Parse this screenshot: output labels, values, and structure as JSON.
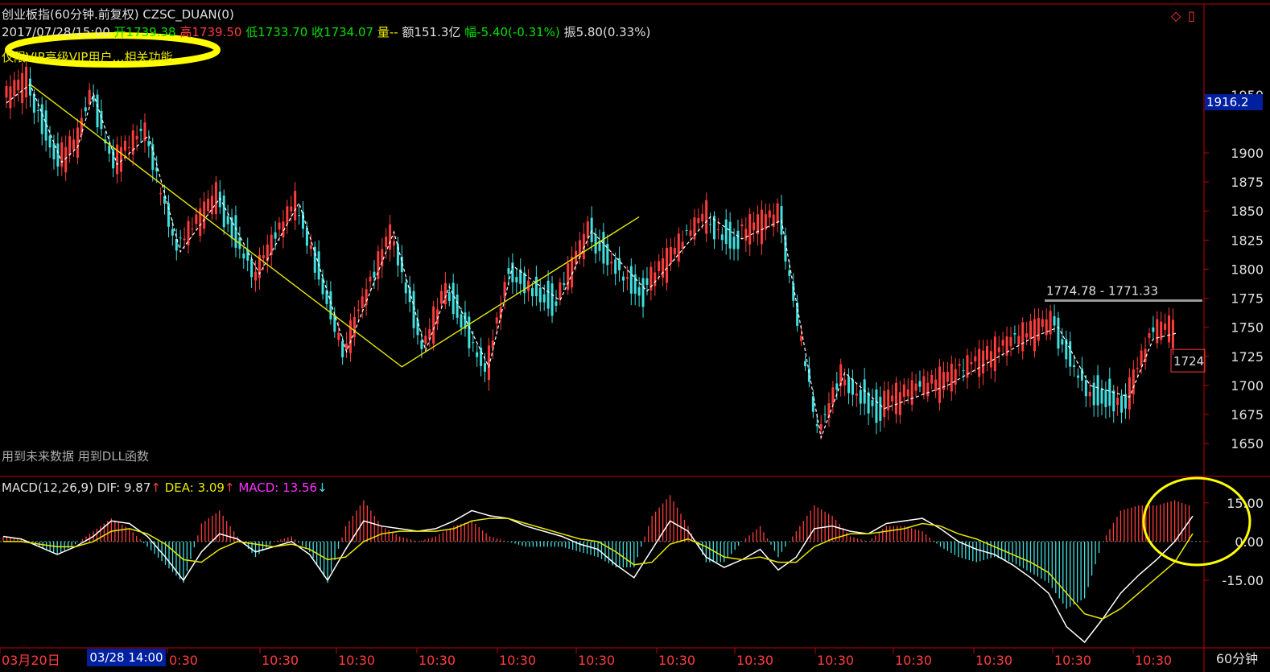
{
  "header": {
    "title": "创业板指(60分钟.前复权) CZSC_DUAN(0)",
    "date": "2017/07/28/15:00",
    "open_label": "开",
    "open": "1739.38",
    "high_label": "高",
    "high": "1739.50",
    "low_label": "低",
    "low": "1733.70",
    "close_label": "收",
    "close": "1734.07",
    "volume": "量--",
    "amount": "额151.3亿",
    "change": "幅-5.40(-0.31%)",
    "amplitude": "振5.80(0.33%)",
    "vip_note": "仅限VIP高级VIP用户…相关功能",
    "warning": "用到未来数据 用到DLL函数"
  },
  "price_box": "1916.2",
  "zone_label": "1774.78 - 1771.33",
  "right_label": "1724",
  "timeframe": "60分钟",
  "date_left": "03月20日",
  "date_cursor": "03/28 14:00",
  "toolbar": {
    "diamond": "◇",
    "window": "▯"
  },
  "macd": {
    "label": "MACD(12,26,9)",
    "dif": "DIF: 9.87",
    "dea": "DEA: 3.09",
    "macd": "MACD: 13.56",
    "arrow_up": "↑",
    "arrow_down": "↓"
  },
  "colors": {
    "up": "#ff3c3c",
    "down": "#40e0e0",
    "axis": "#c00000",
    "zigzag": "#ffffff",
    "trend": "#e8e800"
  },
  "chart_data": [
    {
      "type": "line",
      "title": "创业板指(60分钟.前复权)",
      "y_ticks": [
        1650,
        1675,
        1700,
        1725,
        1750,
        1775,
        1800,
        1825,
        1850,
        1875,
        1900,
        1950
      ],
      "ylim": [
        1630,
        1990
      ],
      "x_ticks": [
        "03月20日",
        "0:30",
        "10:30",
        "10:30",
        "10:30",
        "10:30",
        "10:30",
        "10:30",
        "10:30",
        "10:30",
        "10:30",
        "10:30",
        "10:30",
        "10:30",
        "10:30"
      ],
      "series": [
        {
          "x": [
            0,
            3,
            7,
            9,
            11,
            14,
            18,
            22,
            27,
            32,
            37,
            43,
            49,
            53,
            56,
            61,
            64,
            70,
            74,
            81,
            89,
            93,
            98,
            103,
            106,
            111,
            119,
            130,
            133,
            137,
            142,
            145,
            148
          ],
          "y": [
            1943,
            1959,
            1892,
            1905,
            1951,
            1890,
            1915,
            1815,
            1861,
            1796,
            1857,
            1729,
            1832,
            1730,
            1785,
            1716,
            1803,
            1773,
            1833,
            1781,
            1845,
            1826,
            1842,
            1655,
            1711,
            1680,
            1700,
            1742,
            1750,
            1700,
            1690,
            1740,
            1745
          ]
        },
        {
          "x": [
            3,
            50,
            80,
            120
          ],
          "y": [
            1959,
            1716,
            1845,
            1845
          ]
        }
      ]
    },
    {
      "type": "bar",
      "title": "MACD(12,26,9)",
      "y_ticks": [
        15,
        0,
        -15
      ],
      "ylim": [
        -39,
        19
      ],
      "series": [
        {
          "name": "DIF",
          "values": [
            2,
            1,
            -2,
            -5,
            -2,
            2,
            8,
            7,
            2,
            -6,
            -15,
            -4,
            3,
            1,
            -4,
            -2,
            0,
            -5,
            -15,
            -3,
            8,
            6,
            5,
            4,
            5,
            8,
            12,
            10,
            9,
            6,
            4,
            2,
            -1,
            -3,
            -9,
            -14,
            -3,
            8,
            4,
            -6,
            -10,
            -7,
            -3,
            -11,
            -6,
            5,
            6,
            4,
            3,
            7,
            8,
            9,
            5,
            0,
            -3,
            -5,
            -9,
            -14,
            -20,
            -33,
            -39,
            -30,
            -20,
            -13,
            -7,
            0,
            9.87
          ]
        },
        {
          "name": "DEA",
          "values": [
            0,
            0,
            -1,
            -2,
            -2,
            0,
            4,
            5,
            3,
            -1,
            -7,
            -8,
            -3,
            0,
            -1,
            -2,
            -1,
            -3,
            -7,
            -6,
            0,
            3,
            4,
            4,
            4,
            5,
            8,
            9,
            9,
            7,
            5,
            3,
            1,
            0,
            -4,
            -9,
            -8,
            -1,
            1,
            -2,
            -6,
            -7,
            -6,
            -8,
            -8,
            -2,
            1,
            3,
            3,
            4,
            5,
            7,
            6,
            3,
            1,
            -2,
            -5,
            -8,
            -12,
            -20,
            -28,
            -30,
            -26,
            -20,
            -14,
            -8,
            3.09
          ]
        },
        {
          "name": "MACD",
          "values": [
            2,
            1,
            -2,
            -5,
            -1,
            4,
            9,
            5,
            -2,
            -9,
            -16,
            7,
            12,
            2,
            -6,
            0,
            2,
            -4,
            -16,
            6,
            16,
            6,
            2,
            0,
            2,
            6,
            8,
            2,
            0,
            -2,
            -2,
            -2,
            -4,
            -6,
            -10,
            -10,
            10,
            18,
            6,
            -8,
            -8,
            0,
            6,
            -6,
            4,
            14,
            10,
            2,
            0,
            6,
            6,
            4,
            -2,
            -6,
            -8,
            -6,
            -8,
            -12,
            -16,
            -26,
            -22,
            0,
            12,
            14,
            14,
            16,
            13.56
          ]
        }
      ]
    }
  ]
}
